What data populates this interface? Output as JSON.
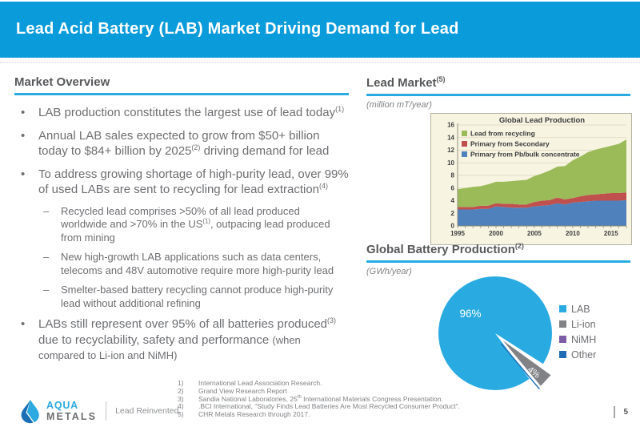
{
  "slide": {
    "title": "Lead Acid Battery (LAB) Market Driving Demand for Lead",
    "page_number": "5"
  },
  "colors": {
    "header_bar": "#0A9BDB",
    "accent_underline": "#29ABE2",
    "heading_text": "#58595B",
    "body_text": "#6D6E71"
  },
  "market_overview": {
    "heading": "Market Overview",
    "bullets": [
      {
        "level": 1,
        "segments": [
          {
            "t": "LAB production constitutes the largest use of lead today"
          },
          {
            "sup": "(1)"
          }
        ]
      },
      {
        "level": 1,
        "segments": [
          {
            "t": "Annual LAB sales expected to grow from $50+ billion today to $84+ billion by 2025"
          },
          {
            "sup": "(2)"
          },
          {
            "t": " driving demand for lead"
          }
        ]
      },
      {
        "level": 1,
        "segments": [
          {
            "t": "To address growing shortage of high-purity lead, over 99% of used LABs are sent to recycling for lead extraction"
          },
          {
            "sup": "(4)"
          }
        ]
      },
      {
        "level": 2,
        "segments": [
          {
            "t": "Recycled lead comprises >50% of all lead produced worldwide and >70% in the US"
          },
          {
            "sup": "(1)"
          },
          {
            "t": ", outpacing lead produced from mining"
          }
        ]
      },
      {
        "level": 2,
        "segments": [
          {
            "t": "New high-growth LAB applications such as data centers, telecoms and 48V automotive require more high-purity lead"
          }
        ]
      },
      {
        "level": 2,
        "segments": [
          {
            "t": "Smelter-based battery recycling cannot produce high-purity lead without additional refining"
          }
        ]
      },
      {
        "level": 1,
        "segments": [
          {
            "t": "LABs still represent over 95% of all batteries produced"
          },
          {
            "sup": "(3)"
          },
          {
            "t": " due to recyclability, safety and performance "
          },
          {
            "small": "(when compared to Li-ion and NiMH)"
          }
        ]
      }
    ]
  },
  "lead_market": {
    "heading": "Lead Market",
    "heading_sup": "(5)",
    "unit": "(million mT/year)"
  },
  "battery_production": {
    "heading": "Global Battery Production",
    "heading_sup": "(2)",
    "unit": "(GWh/year)"
  },
  "chart_data": [
    {
      "type": "area",
      "title": "Global Lead Production",
      "x": [
        1995,
        1996,
        1997,
        1998,
        1999,
        2000,
        2001,
        2002,
        2003,
        2004,
        2005,
        2006,
        2007,
        2008,
        2009,
        2010,
        2011,
        2012,
        2013,
        2014,
        2015,
        2016,
        2017
      ],
      "series": [
        {
          "name": "Primary from Pb/bulk concentrate",
          "color": "#4F81BD",
          "values": [
            2.6,
            2.6,
            2.6,
            2.7,
            2.7,
            3.1,
            3.0,
            2.9,
            2.9,
            2.9,
            3.1,
            3.2,
            3.3,
            3.6,
            3.4,
            3.7,
            3.8,
            3.9,
            4.0,
            4.0,
            4.0,
            4.0,
            4.1
          ]
        },
        {
          "name": "Primary from Secondary",
          "color": "#C0504D",
          "values": [
            0.4,
            0.4,
            0.4,
            0.5,
            0.5,
            0.5,
            0.5,
            0.6,
            0.5,
            0.5,
            0.7,
            0.8,
            0.8,
            0.9,
            0.8,
            0.7,
            0.9,
            1.0,
            1.0,
            1.1,
            1.2,
            1.2,
            1.2
          ]
        },
        {
          "name": "Lead from recycling",
          "color": "#9BBB59",
          "values": [
            2.8,
            3.0,
            3.2,
            3.1,
            3.4,
            3.4,
            3.5,
            3.6,
            3.8,
            3.9,
            4.1,
            4.3,
            4.7,
            4.9,
            5.3,
            6.0,
            6.3,
            6.8,
            7.1,
            7.3,
            7.5,
            7.8,
            8.4
          ]
        }
      ],
      "legend_order": [
        "Lead from recycling",
        "Primary from Secondary",
        "Primary from Pb/bulk concentrate"
      ],
      "ylim": [
        0,
        16
      ],
      "ytick_step": 2,
      "xticks": [
        1995,
        2000,
        2005,
        2010,
        2015
      ],
      "grid": true,
      "legend_position": "top-left-inside",
      "plot_bg": "#F7F4E2"
    },
    {
      "type": "pie",
      "slices": [
        {
          "label": "LAB",
          "value": 96,
          "color": "#29ABE2",
          "value_label": "96%"
        },
        {
          "label": "Li-ion",
          "value": 4,
          "color": "#808285",
          "value_label": "4%",
          "exploded": true
        },
        {
          "label": "NiMH",
          "value": 0,
          "color": "#7C5CA5",
          "value_label": ""
        },
        {
          "label": "Other",
          "value": 0,
          "color": "#1F6CB4",
          "value_label": ""
        }
      ],
      "legend_position": "right"
    }
  ],
  "footnotes": [
    {
      "num": "1)",
      "segments": [
        {
          "t": "International Lead Association Research."
        }
      ]
    },
    {
      "num": "2)",
      "segments": [
        {
          "t": "Grand View Research Report"
        }
      ]
    },
    {
      "num": "3)",
      "segments": [
        {
          "t": "Sandia National Laboratories, 25"
        },
        {
          "sup": "th"
        },
        {
          "t": " International Materials Congress Presentation."
        }
      ]
    },
    {
      "num": "4)",
      "segments": [
        {
          "t": ".BCI International, “Study Finds Lead Batteries Are Most Recycled Consumer Product”."
        }
      ]
    },
    {
      "num": "5)",
      "segments": [
        {
          "t": "CHR Metals Research through 2017."
        }
      ]
    }
  ],
  "logo": {
    "aqua": "AQUA",
    "metals": "METALS",
    "tagline": "Lead Reinvented."
  }
}
